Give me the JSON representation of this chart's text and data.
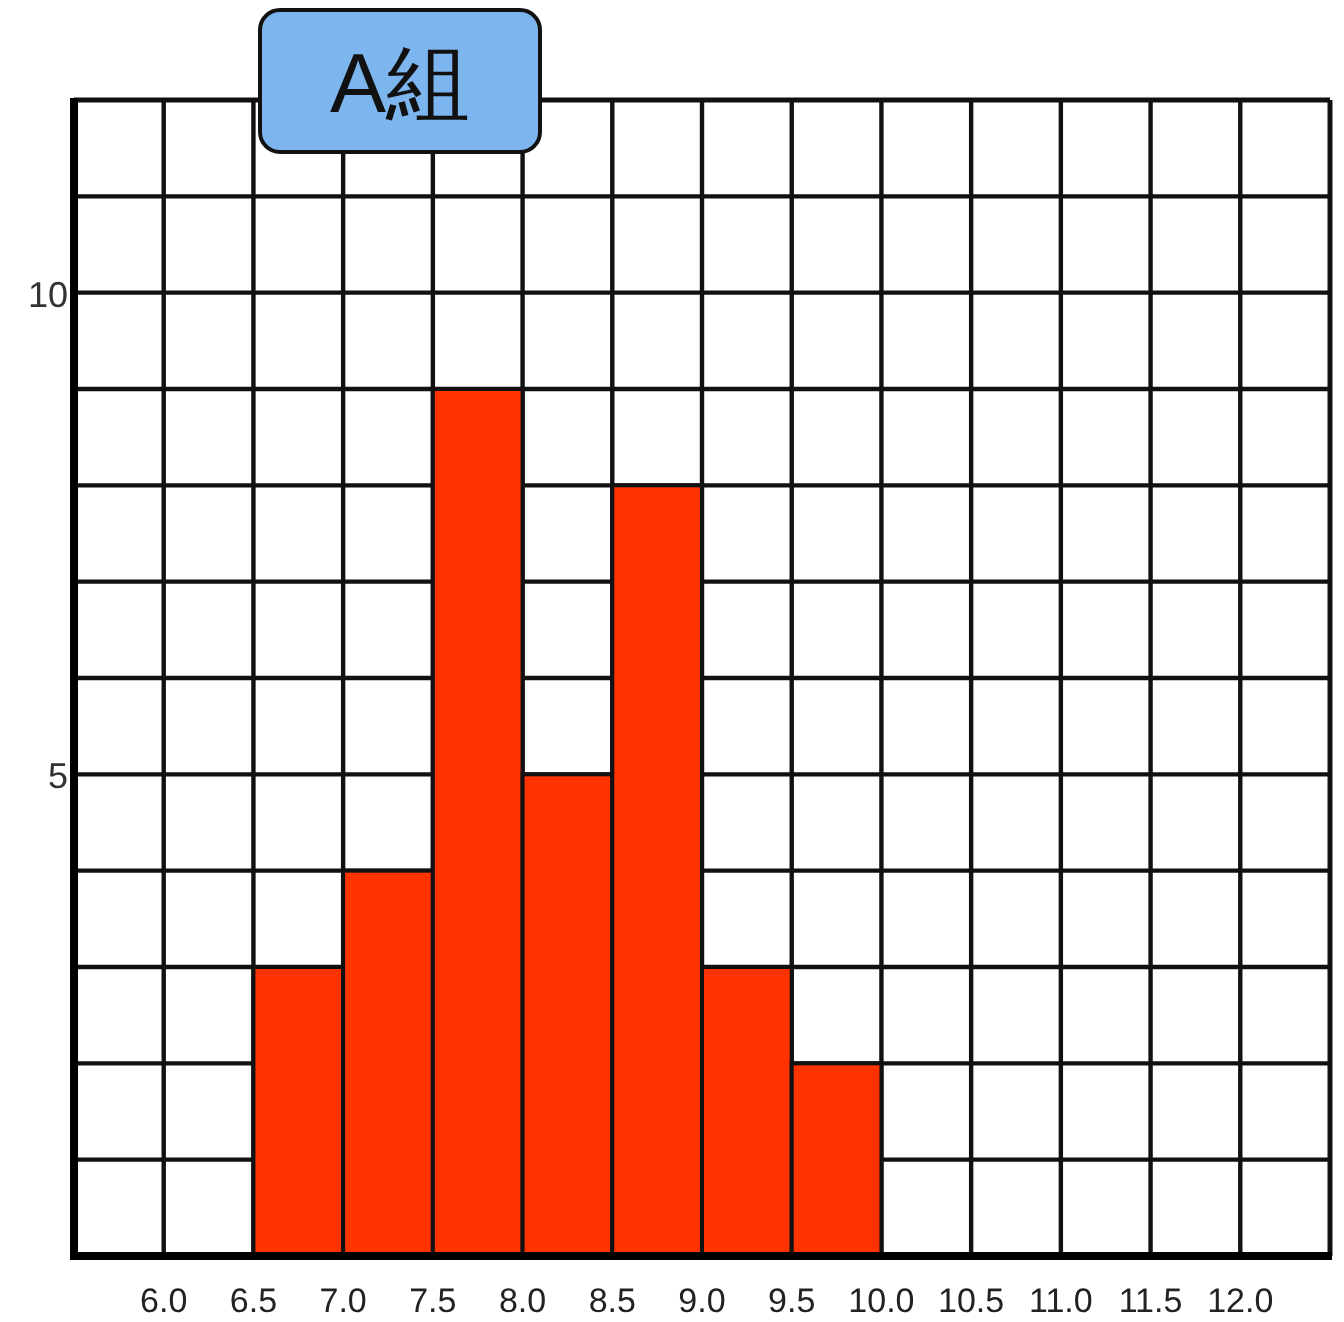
{
  "chart_data": {
    "type": "histogram",
    "title": "A組",
    "bins": [
      6.5,
      7.0,
      7.5,
      8.0,
      8.5,
      9.0,
      9.5,
      10.0
    ],
    "values": [
      3,
      4,
      9,
      5,
      8,
      3,
      2
    ],
    "color": "#ff3300",
    "xlim": [
      5.5,
      12.5
    ],
    "ylim": [
      0,
      12
    ],
    "xticks": [
      {
        "value": 6,
        "label": "6.0"
      },
      {
        "value": 6.5,
        "label": "6.5"
      },
      {
        "value": 7,
        "label": "7.0"
      },
      {
        "value": 7.5,
        "label": "7.5"
      },
      {
        "value": 8,
        "label": "8.0"
      },
      {
        "value": 8.5,
        "label": "8.5"
      },
      {
        "value": 9,
        "label": "9.0"
      },
      {
        "value": 9.5,
        "label": "9.5"
      },
      {
        "value": 10,
        "label": "10.0"
      },
      {
        "value": 10.5,
        "label": "10.5"
      },
      {
        "value": 11,
        "label": "11.0"
      },
      {
        "value": 11.5,
        "label": "11.5"
      },
      {
        "value": 12,
        "label": "12.0"
      }
    ],
    "yticks": [
      {
        "value": 1,
        "label": null
      },
      {
        "value": 2,
        "label": null
      },
      {
        "value": 3,
        "label": null
      },
      {
        "value": 4,
        "label": null
      },
      5,
      {
        "value": 6,
        "label": null
      },
      {
        "value": 7,
        "label": null
      },
      {
        "value": 8,
        "label": null
      },
      {
        "value": 9,
        "label": null
      },
      10,
      {
        "value": 11,
        "label": null
      }
    ],
    "grid": true
  }
}
